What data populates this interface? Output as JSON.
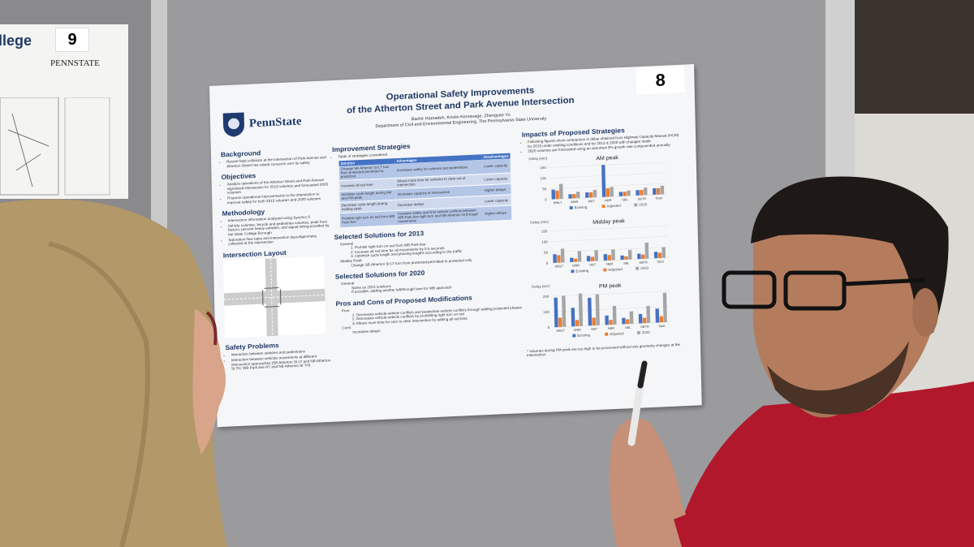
{
  "left_poster": {
    "title_fragment": "llege",
    "number": "9",
    "logo": "PENNSTATE"
  },
  "poster": {
    "number": "8",
    "logo": "PennState",
    "title": [
      "Operational Safety Improvements",
      "of the Atherton Street and Park Avenue Intersection"
    ],
    "authors": "Bachir Hamadeh, Kristin Kersavage, Zhengyao Yu",
    "department": "Department of Civil and Environmental Engineering, The Pennsylvania State University",
    "left_column": [
      {
        "heading": "Background",
        "items": [
          "Recent fatal collisions at the intersection of Park Avenue and Atherton Street has raised concerns over its safety"
        ]
      },
      {
        "heading": "Objectives",
        "items": [
          "Analyze operations of the Atherton Street and Park Avenue signalized intersection for 2013 volumes and forecasted 2020 volumes",
          "Propose operational improvements to the intersection to improve safety for both 2013 volumes and 2020 volumes"
        ]
      },
      {
        "heading": "Methodology",
        "items": [
          "Intersection information analyzed using Synchro 8",
          "Vehicle volumes, bicycle and pedestrian volumes, peak hour factors, percent heavy vehicles, and signal timing provided by the State College Borough",
          "Saturation flow rates and intersection layout/geometry collected at the intersection"
        ]
      },
      {
        "heading": "Intersection Layout"
      },
      {
        "heading": "Safety Problems",
        "items": [
          "Interaction between vehicles and pedestrians",
          "Interaction between vehicles movements at different intersection approaches (SB Atherton St LT and NB Atherton St TH; WB Park Ave RT and NB Atherton St TH)"
        ]
      }
    ],
    "improvement": {
      "heading": "Improvement Strategies",
      "intro": "Table of strategies considered",
      "table": {
        "headers": [
          "Solution",
          "Advantages",
          "Disadvantages"
        ],
        "rows": [
          [
            "Change SB Atherton St LT turn from protected-permitted to protected",
            "Increases safety for vehicles and pedestrians",
            "Lower capacity"
          ],
          [
            "Increase all red time",
            "Allows more time for vehicles to clear out of intersection",
            "Lower capacity"
          ],
          [
            "Increase cycle length during AM and PM peak",
            "Increases capacity of intersection",
            "Higher delays"
          ],
          [
            "Decrease cycle length during midday peak",
            "Decrease delays",
            "Lower capacity"
          ],
          [
            "Prohibit right turn on red from WB Park Ave",
            "Increase safety and limit vehicle conflicts between WB Park Ave right turn and NB Atherton St through movements",
            "Higher delays"
          ]
        ]
      }
    },
    "middle_sections": [
      {
        "heading": "Selected Solutions for 2013",
        "groups": [
          {
            "label": "General",
            "items": [
              "1. Prohibit right turn on red from WB Park Ave",
              "2. Increase all red time for all movements by 0.5 seconds",
              "3. Optimize cycle length and phasing lengths according to the traffic"
            ]
          },
          {
            "label": "Midday Peak",
            "items": [
              "Change SB Atherton St LT turn from protected-permitted to protected only"
            ]
          }
        ]
      },
      {
        "heading": "Selected Solutions for 2020",
        "groups": [
          {
            "label": "General",
            "items": [
              "Same as 2013 solutions",
              "If possible, adding another left/through lane for WB approach"
            ]
          }
        ]
      },
      {
        "heading": "Pros and Cons of Proposed Modifications",
        "groups": [
          {
            "label": "Pros:",
            "items": [
              "1. Decreases vehicle-vehicle conflicts and pedestrian-vehicle conflicts through adding protected phases",
              "2. Decreases vehicle-vehicle conflicts by prohibiting right turn on red",
              "3. Allows more time for cars to clear intersection by adding all red time"
            ]
          },
          {
            "label": "Cons:",
            "items": [
              "Increases delays"
            ]
          }
        ]
      }
    ],
    "impacts": {
      "heading": "Impacts of Proposed Strategies",
      "items": [
        "Following figures show comparison in delay obtained from Highway Capacity Manual (HCM) for 2013 under existing conditions and for 2013 & 2020 with changes made",
        "2020 volumes are forecasted using an assumed 3% growth rate compounded annually"
      ],
      "charts": [
        {
          "type": "bar",
          "title": "AM peak",
          "ylabel": "Delay (sec)",
          "ylim": [
            0,
            160
          ],
          "yticks": [
            0,
            50,
            100,
            150
          ],
          "categories": [
            "WBLT",
            "WBR",
            "NBT",
            "NBR",
            "SBL",
            "SBTR",
            "Total"
          ],
          "series": [
            {
              "name": "Existing",
              "color": "#4472c4",
              "values": [
                45,
                20,
                25,
                150,
                20,
                25,
                30
              ]
            },
            {
              "name": "Adjusted",
              "color": "#ed7d31",
              "values": [
                40,
                20,
                25,
                40,
                20,
                25,
                30
              ]
            },
            {
              "name": "2020",
              "color": "#a5a5a5",
              "values": [
                70,
                30,
                35,
                45,
                25,
                35,
                40
              ]
            }
          ]
        },
        {
          "type": "bar",
          "title": "Midday peak",
          "ylabel": "Delay (sec)",
          "ylim": [
            0,
            160
          ],
          "yticks": [
            0,
            50,
            100,
            150
          ],
          "categories": [
            "WBLT",
            "WBR",
            "NBT",
            "NBR",
            "SBL",
            "SBTR",
            "Total"
          ],
          "series": [
            {
              "name": "Existing",
              "color": "#4472c4",
              "values": [
                40,
                20,
                25,
                30,
                20,
                25,
                30
              ]
            },
            {
              "name": "Adjusted",
              "color": "#ed7d31",
              "values": [
                35,
                15,
                20,
                25,
                15,
                20,
                25
              ]
            },
            {
              "name": "2020",
              "color": "#a5a5a5",
              "values": [
                65,
                50,
                50,
                50,
                45,
                75,
                50
              ]
            }
          ]
        },
        {
          "type": "bar",
          "title": "PM peak",
          "ylabel": "Delay (sec)",
          "ylim": [
            0,
            220
          ],
          "yticks": [
            0,
            100,
            200
          ],
          "categories": [
            "WBLT",
            "WBR",
            "NBT",
            "NBR",
            "SBL",
            "SBTR",
            "Total"
          ],
          "series": [
            {
              "name": "Existing",
              "color": "#4472c4",
              "values": [
                190,
                120,
                180,
                60,
                40,
                60,
                90
              ]
            },
            {
              "name": "Adjusted",
              "color": "#ed7d31",
              "values": [
                60,
                40,
                50,
                30,
                30,
                35,
                40
              ]
            },
            {
              "name": "2020",
              "color": "#a5a5a5",
              "values": [
                200,
                210,
                200,
                120,
                80,
                110,
                190
              ]
            }
          ]
        }
      ],
      "footnote": "* Volumes during PM peak are too high to be processed without any geometry changes at the intersection"
    }
  }
}
